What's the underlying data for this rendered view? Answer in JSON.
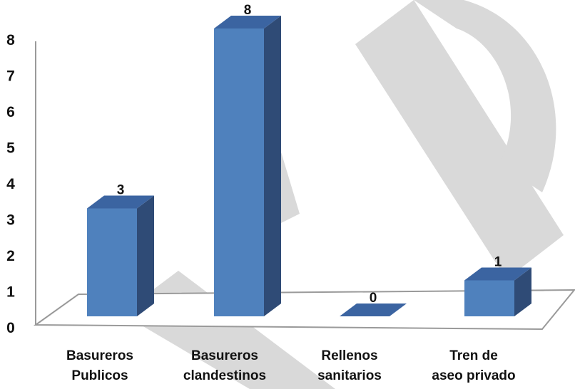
{
  "chart_data": {
    "type": "bar",
    "categories": [
      [
        "Basureros",
        "Publicos"
      ],
      [
        "Basureros",
        "clandestinos"
      ],
      [
        "Rellenos",
        "sanitarios"
      ],
      [
        "Tren de",
        "aseo privado"
      ]
    ],
    "values": [
      3,
      8,
      0,
      1
    ],
    "data_labels": [
      "3",
      "8",
      "0",
      "1"
    ],
    "yticks": [
      "0",
      "1",
      "2",
      "3",
      "4",
      "5",
      "6",
      "7",
      "8"
    ],
    "ylim": [
      0,
      8
    ],
    "grid": false,
    "legend": "none",
    "title": "",
    "xlabel": "",
    "ylabel": "",
    "style": "3d-column",
    "colors": {
      "bar_front": "#4f81bd",
      "bar_side": "#2f4b76",
      "bar_top": "#3b64a1",
      "floor_edge": "#9a9a9a",
      "watermark": "#d9d9d9"
    }
  }
}
